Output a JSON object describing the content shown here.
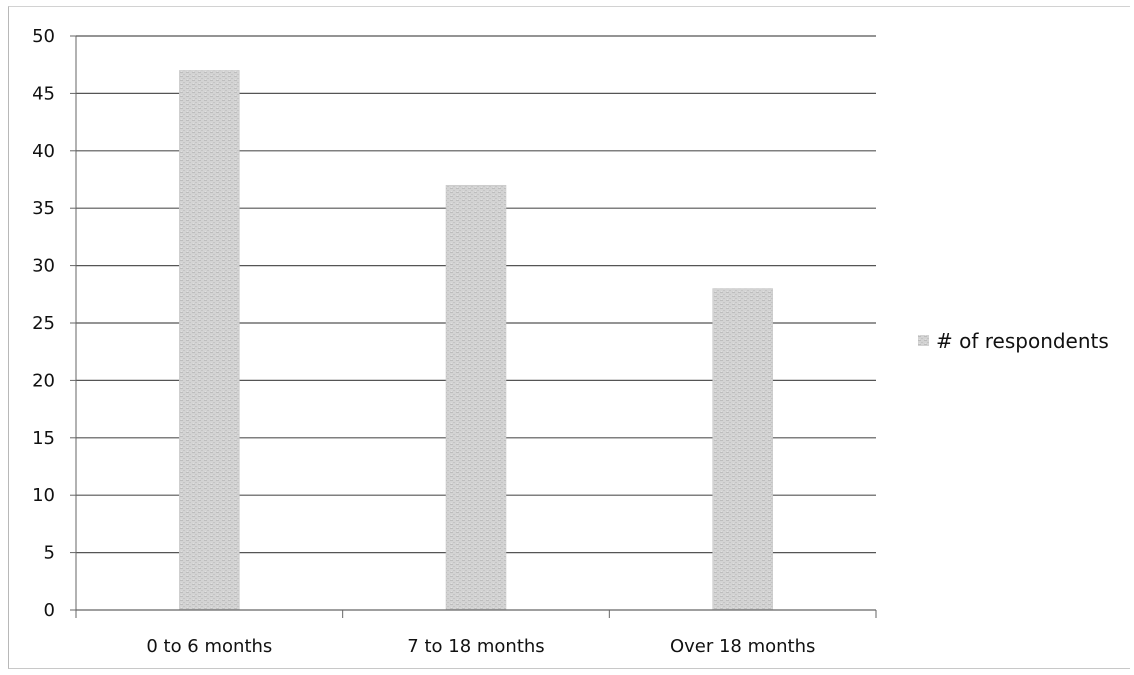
{
  "chart_data": {
    "type": "bar",
    "title": "",
    "xlabel": "",
    "ylabel": "",
    "categories": [
      "0 to 6 months",
      "7 to 18 months",
      "Over 18 months"
    ],
    "series": [
      {
        "name": "# of respondents",
        "values": [
          47,
          37,
          28
        ]
      }
    ],
    "ylim": [
      0,
      50
    ],
    "yticks": [
      "0",
      "5",
      "10",
      "15",
      "20",
      "25",
      "30",
      "35",
      "40",
      "45",
      "50"
    ],
    "grid": true,
    "legend_position": "right",
    "colors": {
      "bar": "#cfcfcf",
      "grid": "#555555",
      "axis": "#666666"
    }
  }
}
